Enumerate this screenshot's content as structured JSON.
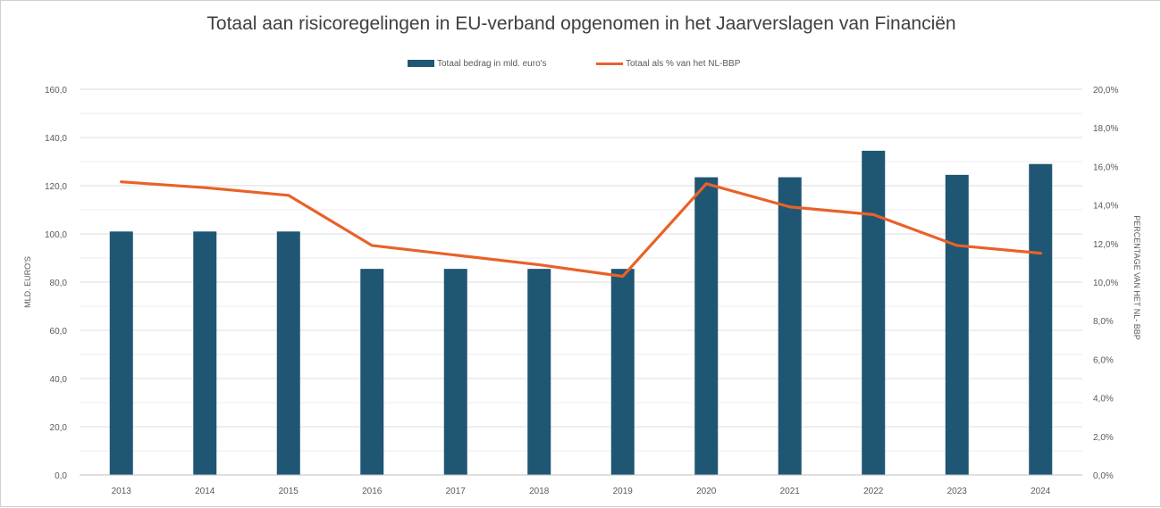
{
  "colors": {
    "bar": "#1f5673",
    "line": "#e8622a",
    "grid": "#e3e3e3",
    "axis_text": "#595959"
  },
  "chart_data": {
    "type": "bar",
    "title": "Totaal aan risicoregelingen in EU-verband opgenomen in het Jaarverslagen van Financiën",
    "categories": [
      "2013",
      "2014",
      "2015",
      "2016",
      "2017",
      "2018",
      "2019",
      "2020",
      "2021",
      "2022",
      "2023",
      "2024"
    ],
    "series": [
      {
        "name": "Totaal bedrag in mld. euro's",
        "type": "bar",
        "axis": "left",
        "values": [
          101,
          101,
          101,
          85.5,
          85.5,
          85.5,
          85.5,
          123.5,
          123.5,
          134.5,
          124.5,
          129
        ]
      },
      {
        "name": "Totaal als % van het NL-BBP",
        "type": "line",
        "axis": "right",
        "values": [
          15.2,
          14.9,
          14.5,
          11.9,
          11.4,
          10.9,
          10.3,
          15.1,
          13.9,
          13.5,
          11.9,
          11.5
        ]
      }
    ],
    "ylabel": "MLD. EURO'S",
    "ylim": [
      0,
      160
    ],
    "yticks": [
      "0,0",
      "20,0",
      "40,0",
      "60,0",
      "80,0",
      "100,0",
      "120,0",
      "140,0",
      "160,0"
    ],
    "y2label": "PERCENTAGE VAN HET NL- BBP",
    "y2lim": [
      0,
      20
    ],
    "y2ticks": [
      "0,0%",
      "2,0%",
      "4,0%",
      "6,0%",
      "8,0%",
      "10,0%",
      "12,0%",
      "14,0%",
      "16,0%",
      "18,0%",
      "20,0%"
    ],
    "legend_position": "top-center",
    "grid": true
  }
}
